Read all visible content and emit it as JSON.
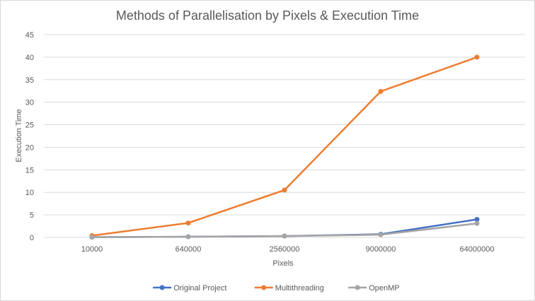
{
  "chart_data": {
    "type": "line",
    "title": "Methods of Parallelisation by Pixels & Execution Time",
    "xlabel": "Pixels",
    "ylabel": "Execution Time",
    "categories": [
      "10000",
      "640000",
      "2560000",
      "9000000",
      "64000000"
    ],
    "ylim": [
      0,
      45
    ],
    "yticks": [
      0,
      5,
      10,
      15,
      20,
      25,
      30,
      35,
      40,
      45
    ],
    "grid": true,
    "legend_position": "bottom",
    "series": [
      {
        "name": "Original Project",
        "color": "#4472c4",
        "values": [
          0.05,
          0.15,
          0.3,
          0.7,
          4.0
        ]
      },
      {
        "name": "Multithreading",
        "color": "#ed7d31",
        "values": [
          0.4,
          3.2,
          10.5,
          32.4,
          40.0
        ]
      },
      {
        "name": "OpenMP",
        "color": "#a5a5a5",
        "values": [
          0.05,
          0.15,
          0.3,
          0.6,
          3.1
        ]
      }
    ]
  }
}
